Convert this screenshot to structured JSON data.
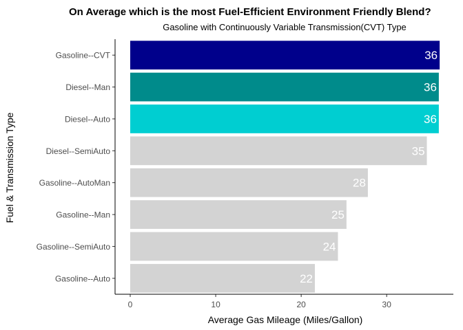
{
  "chart_data": {
    "type": "bar",
    "orientation": "horizontal",
    "title": "On Average which is the most Fuel-Efficient Environment Friendly Blend?",
    "subtitle": "Gasoline with Continuously Variable Transmission(CVT) Type",
    "xlabel": "Average Gas Mileage (Miles/Gallon)",
    "ylabel": "Fuel & Transmission Type",
    "xlim": [
      0,
      37.8
    ],
    "x_ticks": [
      0,
      10,
      20,
      30
    ],
    "grid": false,
    "legend": "none",
    "categories": [
      "Gasoline--CVT",
      "Diesel--Man",
      "Diesel--Auto",
      "Diesel--SemiAuto",
      "Gasoline--AutoMan",
      "Gasoline--Man",
      "Gasoline--SemiAuto",
      "Gasoline--Auto"
    ],
    "values": [
      36.2,
      36.1,
      36.1,
      34.7,
      27.8,
      25.3,
      24.3,
      21.6
    ],
    "data_labels": [
      "36",
      "36",
      "36",
      "35",
      "28",
      "25",
      "24",
      "22"
    ],
    "colors": [
      "#00008B",
      "#008B8B",
      "#00CED1",
      "#D3D3D3",
      "#D3D3D3",
      "#D3D3D3",
      "#D3D3D3",
      "#D3D3D3"
    ]
  }
}
